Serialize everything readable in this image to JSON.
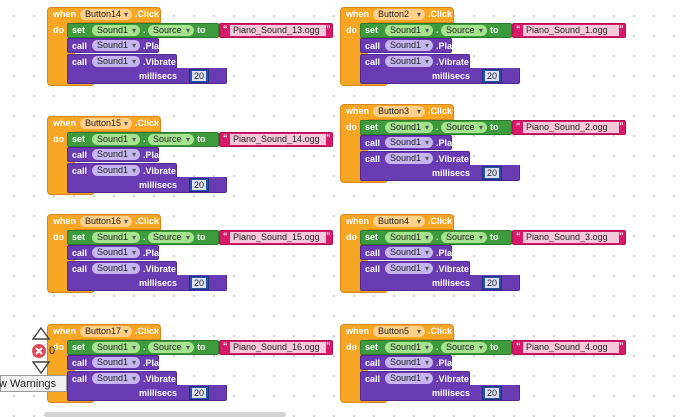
{
  "blocks": [
    {
      "id": "b14",
      "button": "Button14",
      "sound": "Sound1",
      "property": "Source",
      "file": "Piano_Sound_13.ogg",
      "millis": "20"
    },
    {
      "id": "b15",
      "button": "Button15",
      "sound": "Sound1",
      "property": "Source",
      "file": "Piano_Sound_14.ogg",
      "millis": "20"
    },
    {
      "id": "b16",
      "button": "Button16",
      "sound": "Sound1",
      "property": "Source",
      "file": "Piano_Sound_15.ogg",
      "millis": "20"
    },
    {
      "id": "b17",
      "button": "Button17",
      "sound": "Sound1",
      "property": "Source",
      "file": "Piano_Sound_16.ogg",
      "millis": "20"
    },
    {
      "id": "b2",
      "button": "Button2",
      "sound": "Sound1",
      "property": "Source",
      "file": "Piano_Sound_1.ogg",
      "millis": "20"
    },
    {
      "id": "b3",
      "button": "Button3",
      "sound": "Sound1",
      "property": "Source",
      "file": "Piano_Sound_2.ogg",
      "millis": "20"
    },
    {
      "id": "b4",
      "button": "Button4",
      "sound": "Sound1",
      "property": "Source",
      "file": "Piano_Sound_3.ogg",
      "millis": "20"
    },
    {
      "id": "b5",
      "button": "Button5",
      "sound": "Sound1",
      "property": "Source",
      "file": "Piano_Sound_4.ogg",
      "millis": "20"
    }
  ],
  "labels": {
    "when": "when",
    "do": "do",
    "click": ".Click",
    "set": "set",
    "dot": ".",
    "to": "to",
    "call": "call",
    "play": ".Play",
    "vibrate": ".Vibrate",
    "millisecs": "millisecs"
  },
  "warnings": {
    "error_count": "0",
    "toggle_label": "w Warnings"
  },
  "colors": {
    "event": "#f6a623",
    "setter": "#3d9a3d",
    "text": "#d8196a",
    "call": "#6a3cb4",
    "number": "#2d4fa8"
  }
}
